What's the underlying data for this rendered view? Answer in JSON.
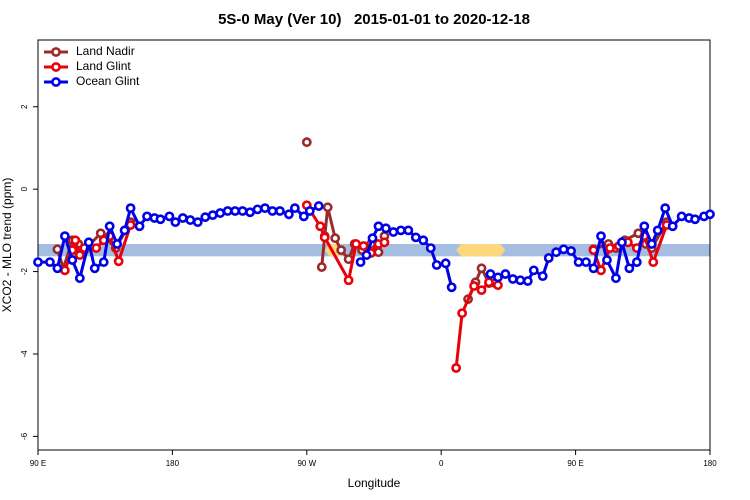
{
  "chart_data": {
    "type": "line",
    "title": "5S-0 May (Ver 10)   2015-01-01 to 2020-12-18",
    "xlabel": "Longitude",
    "ylabel": "XCO2 - MLO trend (ppm)",
    "xlim": [
      90,
      540
    ],
    "ylim": [
      -6.33,
      3.62
    ],
    "xticks": [
      {
        "value": 90,
        "label": "90 E"
      },
      180,
      {
        "value": 270,
        "label": "90 W"
      },
      {
        "value": 360,
        "label": "0"
      },
      {
        "value": 450,
        "label": "90 E"
      },
      {
        "value": 540,
        "label": "180"
      }
    ],
    "yticks": [
      -6,
      -4,
      -2,
      0,
      2
    ],
    "legend": "upper left",
    "band": {
      "ymin": -1.63,
      "ymax": -1.33,
      "color": "#a4bde0"
    },
    "highlights": {
      "color": "#fcd77c",
      "ranges": [
        [
          282,
          296
        ],
        [
          370,
          403
        ]
      ]
    },
    "series": [
      {
        "name": "Land Nadir",
        "color": "#9b2b2b",
        "x": [
          103,
          107,
          113,
          117,
          121,
          132,
          142,
          152,
          null,
          270,
          null,
          280,
          282,
          284,
          289,
          293,
          298,
          302,
          307,
          313,
          318,
          322,
          null,
          378,
          383,
          387,
          392,
          396,
          null,
          462,
          472,
          477,
          483,
          492,
          497,
          501,
          511
        ],
        "values": [
          -1.46,
          -1.92,
          -1.24,
          -1.33,
          -1.48,
          -1.07,
          -1.43,
          -0.8,
          null,
          1.14,
          null,
          -1.89,
          -1.14,
          -0.44,
          -1.19,
          -1.48,
          -1.7,
          -1.33,
          -1.48,
          -1.33,
          -1.53,
          -1.14,
          null,
          -2.67,
          -2.26,
          -1.92,
          -2.28,
          -2.28,
          null,
          -1.46,
          -1.33,
          -1.43,
          -1.24,
          -1.07,
          -1.33,
          -1.43,
          -0.8
        ]
      },
      {
        "name": "Land Glint",
        "color": "#e8000b",
        "x": [
          108,
          113,
          115,
          118,
          121,
          129,
          134,
          138,
          144,
          152,
          null,
          270,
          279,
          282,
          298,
          303,
          308,
          313,
          318,
          322,
          null,
          370,
          374,
          382,
          387,
          392,
          398,
          null,
          462,
          467,
          473,
          479,
          485,
          491,
          496,
          502,
          511
        ],
        "values": [
          -1.97,
          -1.48,
          -1.24,
          -1.6,
          -1.43,
          -1.43,
          -1.24,
          -1.14,
          -1.75,
          -0.87,
          null,
          -0.39,
          -0.9,
          -1.17,
          -2.21,
          -1.33,
          -1.38,
          -1.55,
          -1.33,
          -1.29,
          null,
          -4.34,
          -3.01,
          -2.35,
          -2.45,
          -2.26,
          -2.33,
          null,
          -1.48,
          -1.97,
          -1.43,
          -1.38,
          -1.29,
          -1.43,
          -1.14,
          -1.77,
          -0.87
        ]
      },
      {
        "name": "Ocean Glint",
        "color": "#0000e6",
        "x": [
          90,
          98,
          103,
          108,
          113,
          118,
          124,
          128,
          134,
          138,
          143,
          148,
          152,
          158,
          163,
          168,
          172,
          178,
          182,
          187,
          192,
          197,
          202,
          207,
          212,
          217,
          222,
          227,
          232,
          237,
          242,
          247,
          252,
          258,
          262,
          268,
          272,
          278,
          null,
          306,
          310,
          314,
          318,
          323,
          328,
          333,
          338,
          343,
          348,
          353,
          357,
          363,
          367,
          null,
          393,
          398,
          403,
          408,
          413,
          418,
          422,
          428,
          432,
          437,
          442,
          447,
          452,
          457,
          462,
          467,
          471,
          477,
          481,
          486,
          491,
          496,
          501,
          505,
          510,
          515,
          521,
          526,
          530,
          536,
          540
        ],
        "values": [
          -1.77,
          -1.77,
          -1.92,
          -1.14,
          -1.72,
          -2.16,
          -1.29,
          -1.92,
          -1.77,
          -0.9,
          -1.33,
          -1.0,
          -0.46,
          -0.9,
          -0.66,
          -0.7,
          -0.73,
          -0.66,
          -0.8,
          -0.7,
          -0.75,
          -0.8,
          -0.68,
          -0.63,
          -0.58,
          -0.53,
          -0.53,
          -0.53,
          -0.56,
          -0.49,
          -0.46,
          -0.53,
          -0.53,
          -0.61,
          -0.46,
          -0.66,
          -0.53,
          -0.41,
          null,
          -1.77,
          -1.6,
          -1.19,
          -0.9,
          -0.95,
          -1.04,
          -1.0,
          -1.0,
          -1.17,
          -1.24,
          -1.43,
          -1.84,
          -1.8,
          -2.38,
          null,
          -2.06,
          -2.14,
          -2.06,
          -2.18,
          -2.21,
          -2.23,
          -1.97,
          -2.11,
          -1.67,
          -1.53,
          -1.46,
          -1.5,
          -1.77,
          -1.77,
          -1.92,
          -1.14,
          -1.72,
          -2.16,
          -1.29,
          -1.92,
          -1.77,
          -0.9,
          -1.33,
          -1.0,
          -0.46,
          -0.9,
          -0.66,
          -0.7,
          -0.73,
          -0.66,
          -0.61
        ]
      }
    ]
  }
}
